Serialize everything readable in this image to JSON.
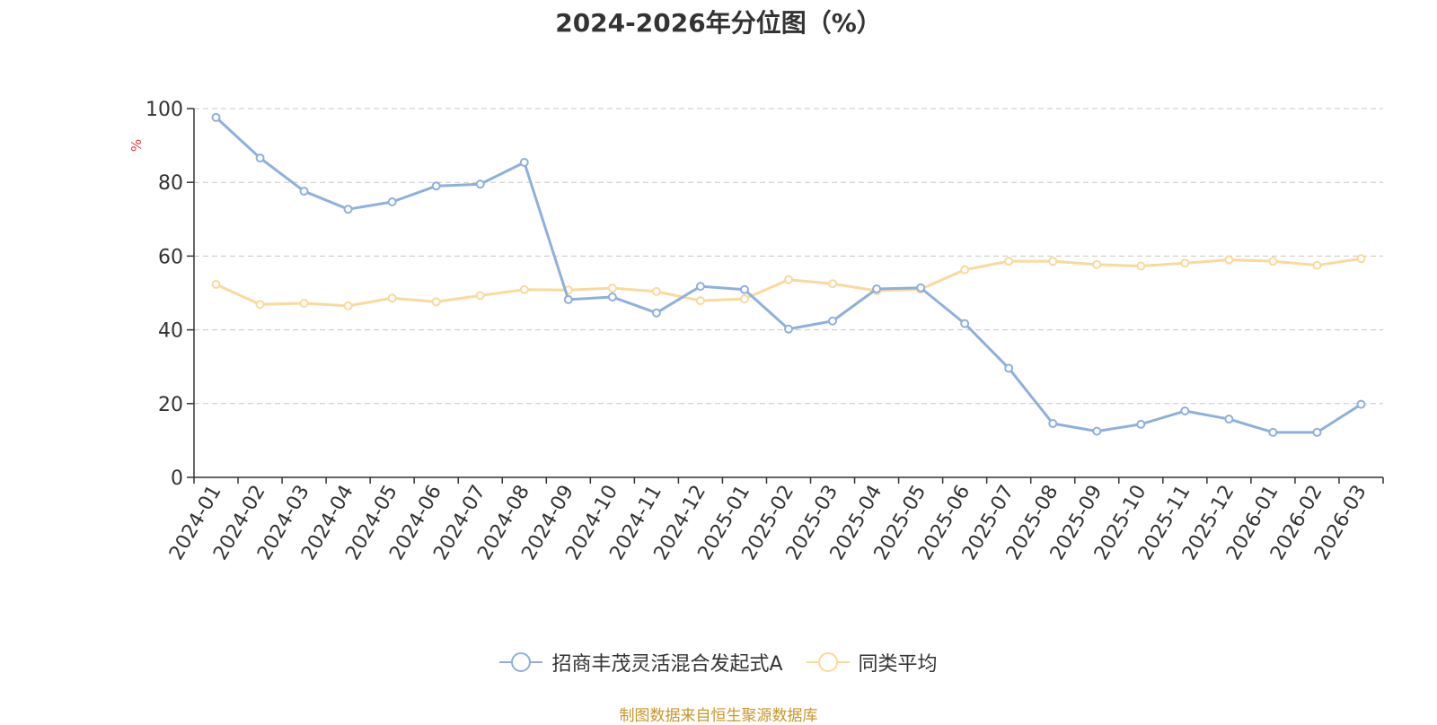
{
  "chart_data": {
    "type": "line",
    "title": "2024-2026年分位图（%）",
    "ylabel": "%",
    "ylim": [
      0,
      100
    ],
    "yticks": [
      "0",
      "20",
      "40",
      "60",
      "80",
      "100"
    ],
    "grid": true,
    "legend_position": "bottom",
    "categories": [
      "2024-01",
      "2024-02",
      "2024-03",
      "2024-04",
      "2024-05",
      "2024-06",
      "2024-07",
      "2024-08",
      "2024-09",
      "2024-10",
      "2024-11",
      "2024-12",
      "2025-01",
      "2025-02",
      "2025-03",
      "2025-04",
      "2025-05",
      "2025-06",
      "2025-07",
      "2025-08",
      "2025-09",
      "2025-10",
      "2025-11",
      "2025-12",
      "2026-01",
      "2026-02",
      "2026-03"
    ],
    "series": [
      {
        "name": "招商丰茂灵活混合发起式A",
        "color": "#8eb0dc",
        "values": [
          97.6,
          86.6,
          77.6,
          72.7,
          74.7,
          79.0,
          79.5,
          85.4,
          48.2,
          48.9,
          44.6,
          51.8,
          50.9,
          40.2,
          42.4,
          51.1,
          51.4,
          41.7,
          29.6,
          14.6,
          12.5,
          14.4,
          18.0,
          15.8,
          12.2,
          12.2,
          19.8
        ]
      },
      {
        "name": "同类平均",
        "color": "#fad99b",
        "values": [
          52.3,
          46.9,
          47.2,
          46.5,
          48.6,
          47.6,
          49.3,
          50.9,
          50.8,
          51.3,
          50.4,
          47.9,
          48.4,
          53.6,
          52.5,
          50.6,
          51.0,
          56.3,
          58.6,
          58.6,
          57.7,
          57.3,
          58.1,
          59.0,
          58.6,
          57.5,
          59.3
        ]
      }
    ]
  },
  "footer": {
    "source": "制图数据来自恒生聚源数据库"
  }
}
